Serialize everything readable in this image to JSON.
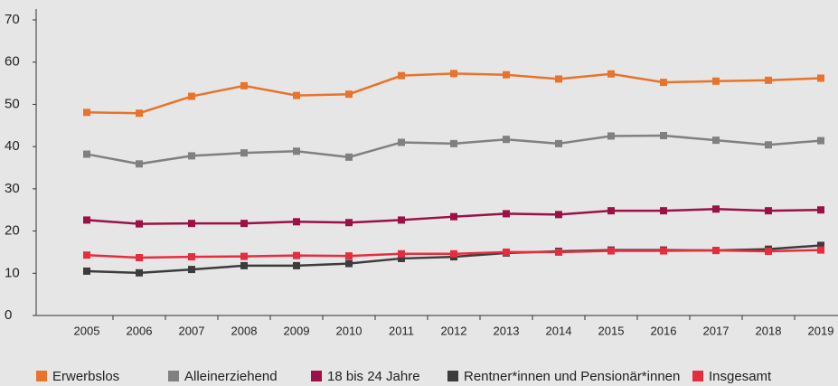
{
  "chart_data": {
    "type": "line",
    "categories": [
      "2005",
      "2006",
      "2007",
      "2008",
      "2009",
      "2010",
      "2011",
      "2012",
      "2013",
      "2014",
      "2015",
      "2016",
      "2017",
      "2018",
      "2019"
    ],
    "series": [
      {
        "name": "Erwerbslos",
        "color": "#e8732a",
        "values": [
          48.1,
          47.9,
          51.9,
          54.4,
          52.1,
          52.4,
          56.8,
          57.3,
          57.0,
          56.0,
          57.2,
          55.2,
          55.5,
          55.7,
          56.2
        ]
      },
      {
        "name": "Alleinerziehend",
        "color": "#808080",
        "values": [
          38.2,
          35.9,
          37.8,
          38.5,
          38.9,
          37.5,
          41.0,
          40.7,
          41.7,
          40.7,
          42.5,
          42.6,
          41.5,
          40.4,
          41.4
        ]
      },
      {
        "name": "18 bis 24 Jahre",
        "color": "#9b1046",
        "values": [
          22.6,
          21.7,
          21.8,
          21.8,
          22.2,
          22.0,
          22.6,
          23.4,
          24.1,
          23.9,
          24.8,
          24.8,
          25.2,
          24.8,
          25.0
        ]
      },
      {
        "name": "Rentner*innen und Pensionär*innen",
        "color": "#3c3c3c",
        "values": [
          10.5,
          10.1,
          10.9,
          11.8,
          11.8,
          12.3,
          13.5,
          13.9,
          14.8,
          15.2,
          15.5,
          15.5,
          15.4,
          15.7,
          16.6
        ]
      },
      {
        "name": "Insgesamt",
        "color": "#e62d3e",
        "values": [
          14.3,
          13.7,
          13.9,
          14.0,
          14.2,
          14.1,
          14.6,
          14.6,
          15.0,
          15.0,
          15.3,
          15.3,
          15.4,
          15.2,
          15.5
        ]
      }
    ],
    "ylim": [
      0,
      70
    ],
    "yticks": [
      0,
      10,
      20,
      30,
      40,
      50,
      60,
      70
    ],
    "grid": false,
    "legend": "bottom"
  }
}
